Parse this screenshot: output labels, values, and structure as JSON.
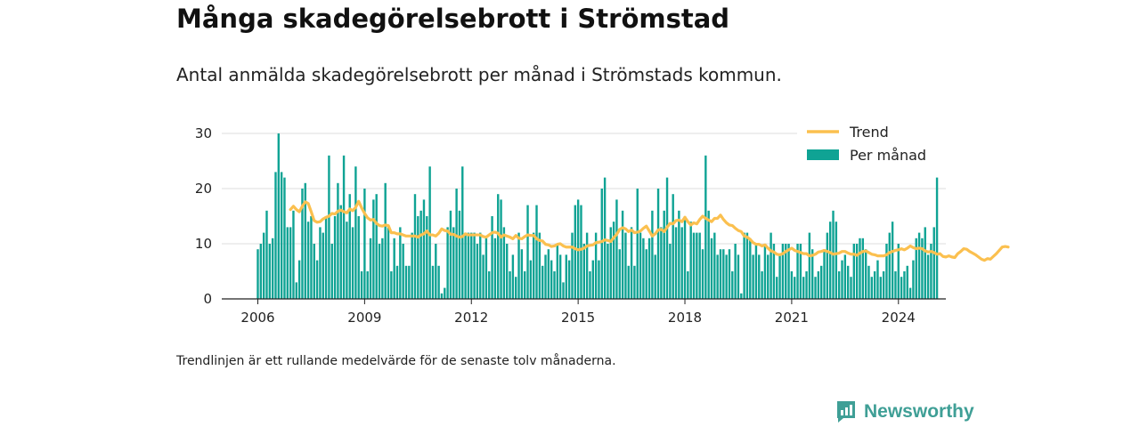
{
  "title": "Många skadegörelsebrott i Strömstad",
  "subtitle": "Antal anmälda skadegörelsebrott per månad i Strömstads kommun.",
  "footnote": "Trendlinjen är ett rullande medelvärde för de senaste tolv månaderna.",
  "brand": {
    "name": "Newsworthy",
    "icon": "bar-chart-speech-bubble-icon"
  },
  "colors": {
    "bars": "#0fa394",
    "trend": "#fbc04f",
    "grid": "#dddddd",
    "axis": "#222222",
    "brand": "#3f9f96"
  },
  "chart_data": {
    "type": "bar",
    "x_start": "2006-01",
    "x_ticks": [
      "2006",
      "2009",
      "2012",
      "2015",
      "2018",
      "2021",
      "2024"
    ],
    "y_ticks": [
      "0",
      "10",
      "20",
      "30"
    ],
    "ylim": [
      0,
      30
    ],
    "legend_position": "top-right",
    "grid": true,
    "series": [
      {
        "name": "Per månad",
        "type": "bar",
        "values": [
          9,
          10,
          12,
          16,
          10,
          11,
          23,
          30,
          23,
          22,
          13,
          13,
          16,
          3,
          7,
          20,
          21,
          14,
          15,
          10,
          7,
          13,
          12,
          15,
          26,
          10,
          15,
          21,
          17,
          26,
          14,
          19,
          13,
          24,
          15,
          5,
          20,
          5,
          11,
          18,
          19,
          10,
          11,
          21,
          13,
          5,
          11,
          6,
          13,
          10,
          6,
          6,
          12,
          19,
          15,
          16,
          18,
          15,
          24,
          6,
          10,
          6,
          1,
          2,
          13,
          16,
          13,
          20,
          16,
          24,
          12,
          12,
          12,
          12,
          10,
          12,
          8,
          11,
          5,
          15,
          11,
          19,
          18,
          13,
          10,
          5,
          8,
          4,
          12,
          9,
          5,
          17,
          7,
          12,
          17,
          12,
          6,
          8,
          9,
          7,
          5,
          10,
          8,
          3,
          8,
          7,
          12,
          17,
          18,
          17,
          10,
          12,
          5,
          7,
          12,
          7,
          20,
          22,
          10,
          13,
          14,
          18,
          9,
          16,
          12,
          6,
          13,
          6,
          20,
          12,
          11,
          9,
          11,
          16,
          8,
          20,
          13,
          16,
          22,
          10,
          19,
          13,
          16,
          13,
          15,
          5,
          14,
          12,
          12,
          12,
          9,
          26,
          16,
          11,
          12,
          8,
          9,
          9,
          8,
          9,
          5,
          10,
          8,
          1,
          12,
          12,
          11,
          8,
          10,
          8,
          5,
          10,
          8,
          12,
          10,
          4,
          8,
          10,
          10,
          10,
          5,
          4,
          10,
          10,
          4,
          5,
          12,
          9,
          4,
          5,
          6,
          9,
          12,
          14,
          16,
          14,
          5,
          7,
          8,
          6,
          4,
          10,
          10,
          11,
          11,
          9,
          6,
          4,
          5,
          7,
          4,
          5,
          10,
          12,
          14,
          5,
          10,
          4,
          5,
          6,
          2,
          7,
          11,
          12,
          11,
          13,
          8,
          10,
          13,
          22
        ]
      },
      {
        "name": "Trend",
        "type": "line",
        "values": [
          null,
          null,
          null,
          null,
          null,
          null,
          null,
          null,
          null,
          null,
          null,
          16.2,
          16.8,
          16.2,
          15.8,
          16.8,
          17.6,
          17.3,
          15.8,
          14.2,
          13.9,
          14.0,
          14.5,
          14.8,
          15.0,
          15.5,
          15.4,
          15.9,
          16.1,
          15.8,
          15.6,
          16.3,
          16.0,
          16.6,
          17.7,
          16.5,
          15.5,
          14.7,
          14.3,
          14.4,
          13.7,
          13.3,
          13.2,
          13.4,
          13.3,
          12.0,
          12.0,
          11.8,
          11.8,
          11.6,
          11.4,
          11.4,
          11.4,
          11.4,
          11.2,
          11.6,
          11.8,
          12.3,
          11.6,
          11.6,
          11.4,
          11.9,
          12.7,
          12.4,
          12.3,
          11.7,
          11.7,
          11.4,
          11.2,
          11.3,
          11.8,
          11.6,
          11.6,
          11.6,
          11.6,
          11.6,
          11.3,
          11.2,
          11.6,
          12.0,
          12.1,
          11.9,
          11.2,
          11.6,
          11.4,
          11.2,
          10.9,
          11.5,
          11.0,
          10.9,
          11.3,
          11.6,
          11.5,
          11.5,
          10.9,
          10.6,
          10.5,
          9.9,
          9.8,
          9.5,
          9.6,
          9.9,
          10.0,
          9.6,
          9.4,
          9.4,
          9.4,
          9.1,
          8.9,
          9.0,
          9.2,
          9.6,
          9.7,
          9.8,
          10.2,
          10.3,
          10.4,
          10.7,
          10.6,
          10.4,
          11.1,
          11.7,
          12.6,
          12.9,
          12.7,
          12.2,
          12.5,
          12.0,
          12.1,
          12.3,
          12.8,
          13.2,
          12.3,
          11.4,
          11.8,
          12.5,
          12.6,
          12.2,
          13.0,
          13.7,
          13.6,
          14.2,
          14.3,
          14.0,
          14.8,
          14.0,
          13.4,
          13.8,
          13.6,
          14.4,
          15.0,
          14.6,
          14.3,
          14.0,
          14.6,
          14.6,
          15.2,
          14.4,
          13.8,
          13.4,
          13.3,
          12.8,
          12.4,
          12.2,
          11.4,
          11.2,
          10.8,
          10.2,
          9.9,
          9.9,
          9.6,
          9.8,
          9.2,
          8.7,
          8.5,
          8.1,
          8.0,
          8.2,
          8.6,
          8.9,
          9.2,
          8.8,
          8.6,
          8.4,
          8.2,
          8.2,
          7.8,
          7.9,
          8.1,
          8.5,
          8.6,
          8.8,
          8.6,
          8.4,
          8.1,
          8.2,
          8.3,
          8.6,
          8.6,
          8.3,
          8.1,
          8.1,
          7.9,
          8.3,
          8.6,
          8.7,
          8.4,
          8.1,
          8.0,
          7.8,
          7.8,
          7.8,
          8.0,
          8.4,
          8.6,
          8.8,
          8.9,
          9.1,
          8.9,
          9.2,
          9.6,
          9.3,
          9.1,
          9.2,
          9.1,
          8.7,
          8.5,
          8.6,
          8.4,
          8.1,
          8.2,
          7.7,
          7.6,
          7.8,
          7.6,
          7.5,
          8.2,
          8.6,
          9.1,
          9.0,
          8.6,
          8.3,
          8.0,
          7.6,
          7.2,
          7.0,
          7.3,
          7.2,
          7.7,
          8.2,
          8.8,
          9.4,
          9.5,
          9.4
        ]
      }
    ]
  }
}
